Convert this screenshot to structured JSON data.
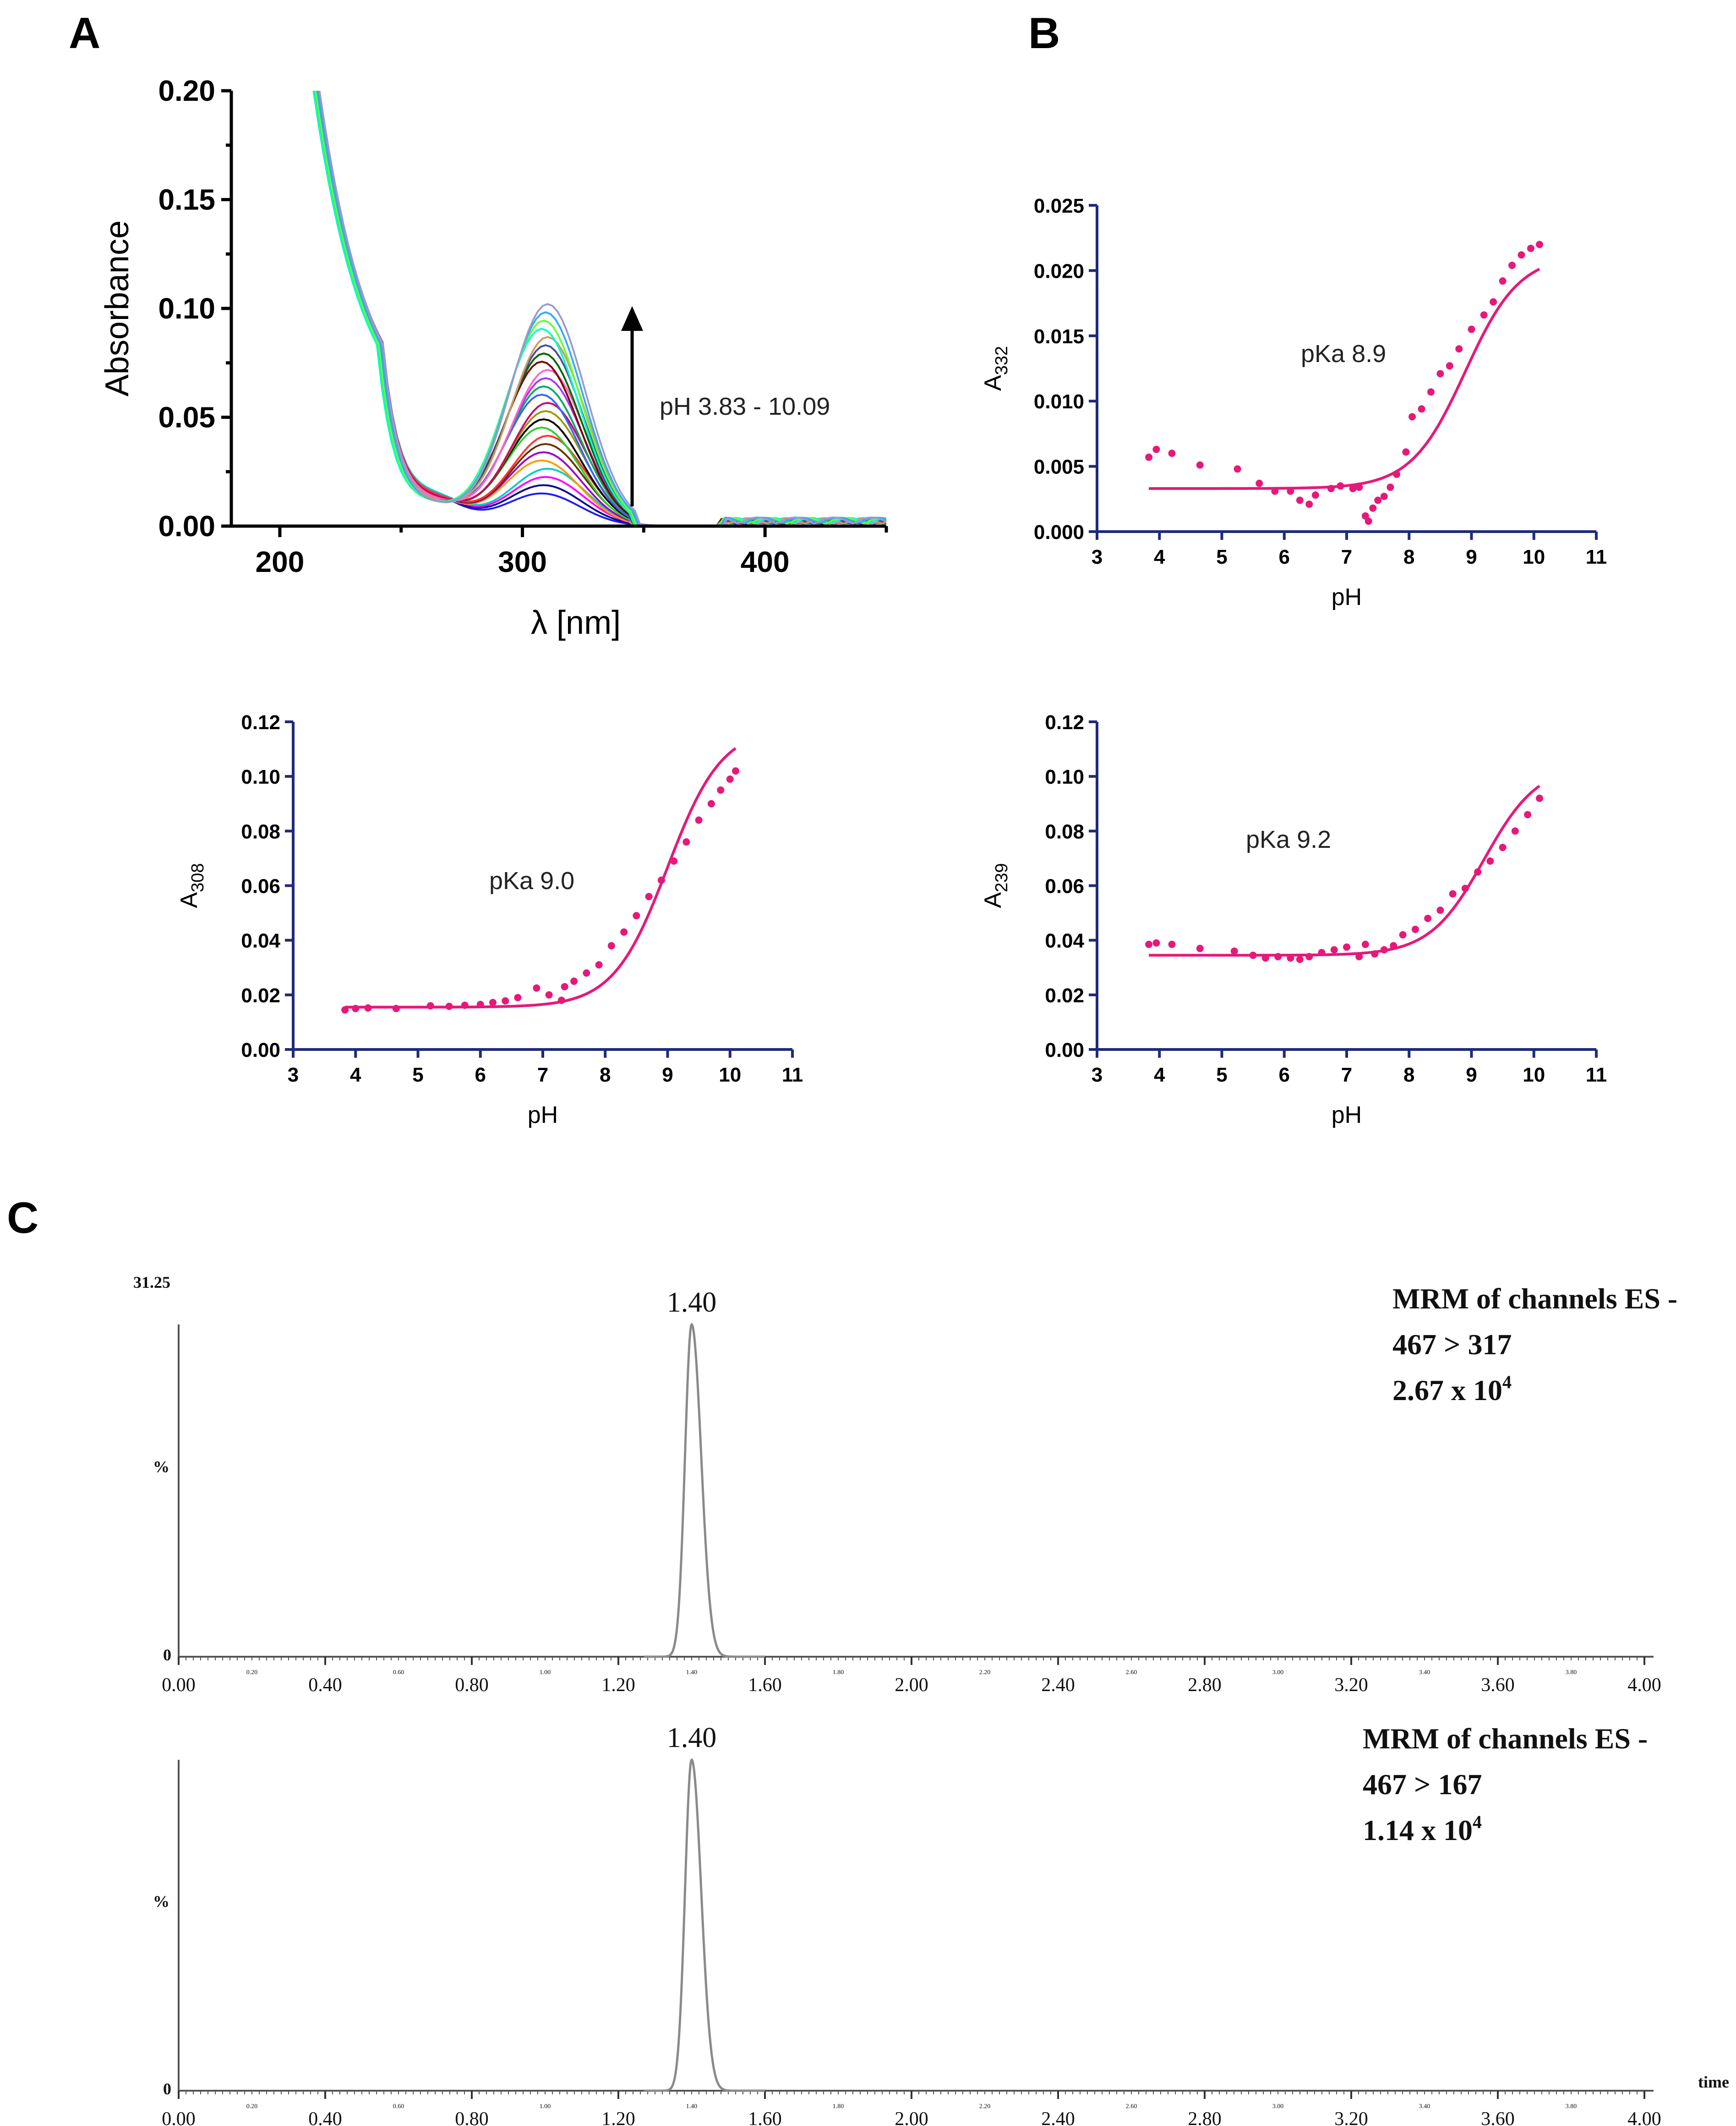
{
  "panels": {
    "A": "A",
    "B": "B",
    "C": "C"
  },
  "colors": {
    "pink": "#e6197a",
    "axis_blue": "#1f2a7a",
    "trace_gray": "#8a8a8a"
  },
  "chart_data": [
    {
      "id": "A",
      "type": "line",
      "title": "",
      "xlabel": "λ [nm]",
      "ylabel": "Absorbance",
      "xlim": [
        180,
        450
      ],
      "ylim": [
        0,
        0.2
      ],
      "xticks": [
        "200",
        "300",
        "400"
      ],
      "yticks": [
        "0.00",
        "0.05",
        "0.10",
        "0.15",
        "0.20"
      ],
      "annotation": "pH 3.83 - 10.09",
      "n_spectra": 24,
      "peak_wavelength_nm": 308,
      "peak_min": 0.015,
      "peak_max": 0.102,
      "series_colors": [
        "#1a1aff",
        "#0a0a8a",
        "#ff00ff",
        "#00cccc",
        "#ff9900",
        "#9900cc",
        "#663300",
        "#ff3333",
        "#33cc33",
        "#000000",
        "#999900",
        "#cc0066",
        "#3366ff",
        "#00aa66",
        "#aa33ff",
        "#ff66cc",
        "#7a0000",
        "#006600",
        "#4c4c99",
        "#cc9966",
        "#00ffcc",
        "#66ff33",
        "#33aaff",
        "#9a9ad0"
      ]
    },
    {
      "id": "B1",
      "type": "scatter",
      "title": "",
      "xlabel": "pH",
      "ylabel": "A",
      "ylabel_sub": "332",
      "xlim": [
        3,
        11
      ],
      "ylim": [
        0,
        0.025
      ],
      "xticks": [
        "3",
        "4",
        "5",
        "6",
        "7",
        "8",
        "9",
        "10",
        "11"
      ],
      "yticks": [
        "0.000",
        "0.005",
        "0.010",
        "0.015",
        "0.020",
        "0.025"
      ],
      "annotation": "pKa 8.9",
      "fit": {
        "bottom": 0.0033,
        "top": 0.0212,
        "pKa": 8.9
      },
      "x": [
        3.83,
        3.95,
        4.2,
        4.65,
        5.25,
        5.6,
        5.85,
        6.1,
        6.25,
        6.4,
        6.5,
        6.75,
        6.9,
        7.1,
        7.2,
        7.3,
        7.35,
        7.42,
        7.5,
        7.6,
        7.7,
        7.8,
        7.95,
        8.05,
        8.2,
        8.35,
        8.5,
        8.65,
        8.8,
        9.0,
        9.2,
        9.35,
        9.5,
        9.65,
        9.8,
        9.95,
        10.09
      ],
      "y": [
        0.0057,
        0.0063,
        0.006,
        0.0051,
        0.0048,
        0.0037,
        0.0031,
        0.0031,
        0.0024,
        0.0021,
        0.0028,
        0.0033,
        0.0035,
        0.0033,
        0.0034,
        0.0012,
        0.0008,
        0.0018,
        0.0024,
        0.0027,
        0.0034,
        0.0044,
        0.0061,
        0.0088,
        0.0094,
        0.0107,
        0.0121,
        0.0127,
        0.014,
        0.0155,
        0.0166,
        0.0176,
        0.0192,
        0.0204,
        0.0212,
        0.0217,
        0.022
      ]
    },
    {
      "id": "B2",
      "type": "scatter",
      "title": "",
      "xlabel": "pH",
      "ylabel": "A",
      "ylabel_sub": "308",
      "xlim": [
        3,
        11
      ],
      "ylim": [
        0,
        0.12
      ],
      "xticks": [
        "3",
        "4",
        "5",
        "6",
        "7",
        "8",
        "9",
        "10",
        "11"
      ],
      "yticks": [
        "0.00",
        "0.02",
        "0.04",
        "0.06",
        "0.08",
        "0.10",
        "0.12"
      ],
      "annotation": "pKa 9.0",
      "fit": {
        "bottom": 0.0155,
        "top": 0.118,
        "pKa": 9.0
      },
      "x": [
        3.83,
        4.0,
        4.2,
        4.65,
        5.2,
        5.5,
        5.75,
        6.0,
        6.2,
        6.4,
        6.6,
        6.9,
        7.1,
        7.3,
        7.35,
        7.5,
        7.7,
        7.9,
        8.1,
        8.3,
        8.5,
        8.7,
        8.9,
        9.1,
        9.3,
        9.5,
        9.7,
        9.85,
        10.0,
        10.09
      ],
      "y": [
        0.0145,
        0.015,
        0.0152,
        0.015,
        0.016,
        0.0158,
        0.0162,
        0.0165,
        0.0172,
        0.0178,
        0.019,
        0.0225,
        0.02,
        0.018,
        0.023,
        0.025,
        0.028,
        0.031,
        0.038,
        0.043,
        0.049,
        0.056,
        0.062,
        0.069,
        0.076,
        0.084,
        0.09,
        0.095,
        0.099,
        0.102
      ]
    },
    {
      "id": "B3",
      "type": "scatter",
      "title": "",
      "xlabel": "pH",
      "ylabel": "A",
      "ylabel_sub": "239",
      "xlim": [
        3,
        11
      ],
      "ylim": [
        0,
        0.12
      ],
      "xticks": [
        "3",
        "4",
        "5",
        "6",
        "7",
        "8",
        "9",
        "10",
        "11"
      ],
      "yticks": [
        "0.00",
        "0.02",
        "0.04",
        "0.06",
        "0.08",
        "0.10",
        "0.12"
      ],
      "annotation": "pKa 9.2",
      "fit": {
        "bottom": 0.0345,
        "top": 0.1045,
        "pKa": 9.2
      },
      "x": [
        3.83,
        3.95,
        4.2,
        4.65,
        5.2,
        5.5,
        5.7,
        5.9,
        6.1,
        6.25,
        6.4,
        6.6,
        6.8,
        7.0,
        7.2,
        7.3,
        7.45,
        7.6,
        7.75,
        7.9,
        8.1,
        8.3,
        8.5,
        8.7,
        8.9,
        9.1,
        9.3,
        9.5,
        9.7,
        9.9,
        10.09
      ],
      "y": [
        0.0385,
        0.039,
        0.0385,
        0.037,
        0.036,
        0.0345,
        0.0335,
        0.034,
        0.0335,
        0.033,
        0.034,
        0.0355,
        0.0365,
        0.0375,
        0.034,
        0.0385,
        0.035,
        0.0365,
        0.038,
        0.042,
        0.044,
        0.048,
        0.051,
        0.057,
        0.059,
        0.065,
        0.069,
        0.074,
        0.08,
        0.086,
        0.092
      ]
    },
    {
      "id": "C1",
      "type": "line",
      "title": "MRM of channels ES -",
      "transition": "467 > 317",
      "intensity_base": "2.67 x 10",
      "intensity_exp": "4",
      "ylabel": "%",
      "ymax_label": "31.25",
      "y0_label": "0",
      "xlim": [
        0,
        4.0
      ],
      "peak_label": "1.40",
      "peak_time": 1.4,
      "peak_width": 0.032,
      "xticks_major": [
        "0.00",
        "0.40",
        "0.80",
        "1.20",
        "1.60",
        "2.00",
        "2.40",
        "2.80",
        "3.20",
        "3.60",
        "4.00"
      ],
      "xticks_minor": [
        "0.20",
        "0.60",
        "1.00",
        "1.40",
        "1.80",
        "2.20",
        "2.60",
        "3.00",
        "3.40",
        "3.80"
      ]
    },
    {
      "id": "C2",
      "type": "line",
      "title": "MRM of channels ES -",
      "transition": "467 > 167",
      "intensity_base": "1.14 x 10",
      "intensity_exp": "4",
      "ylabel": "%",
      "y0_label": "0",
      "xlabel": "time",
      "xlim": [
        0,
        4.0
      ],
      "peak_label": "1.40",
      "peak_time": 1.4,
      "peak_width": 0.032,
      "xticks_major": [
        "0.00",
        "0.40",
        "0.80",
        "1.20",
        "1.60",
        "2.00",
        "2.40",
        "2.80",
        "3.20",
        "3.60",
        "4.00"
      ],
      "xticks_minor": [
        "0.20",
        "0.60",
        "1.00",
        "1.40",
        "1.80",
        "2.20",
        "2.60",
        "3.00",
        "3.40",
        "3.80"
      ]
    }
  ]
}
